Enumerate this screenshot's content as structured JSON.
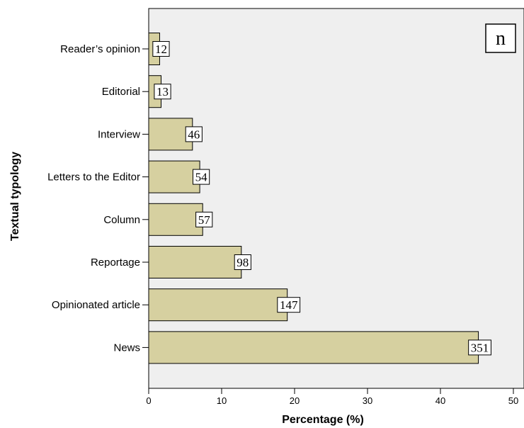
{
  "chart_data": {
    "type": "bar",
    "orientation": "horizontal",
    "panel_label": "n",
    "xlabel": "Percentage (%)",
    "ylabel": "Textual typology",
    "xlim": [
      0,
      52
    ],
    "xticks": [
      0,
      10,
      20,
      30,
      40,
      50
    ],
    "categories": [
      "Reader’s opinion",
      "Editorial",
      "Interview",
      "Letters to the Editor",
      "Column",
      "Reportage",
      "Opinionated article",
      "News"
    ],
    "values": [
      1.5,
      1.7,
      6.0,
      7.0,
      7.4,
      12.7,
      19.0,
      45.2
    ],
    "data_labels": [
      "12",
      "13",
      "46",
      "54",
      "57",
      "98",
      "147",
      "351"
    ],
    "grid": false,
    "colors": {
      "bar_fill": "#d6d0a0",
      "plot_background": "#efefef",
      "bar_stroke": "#000000"
    }
  }
}
